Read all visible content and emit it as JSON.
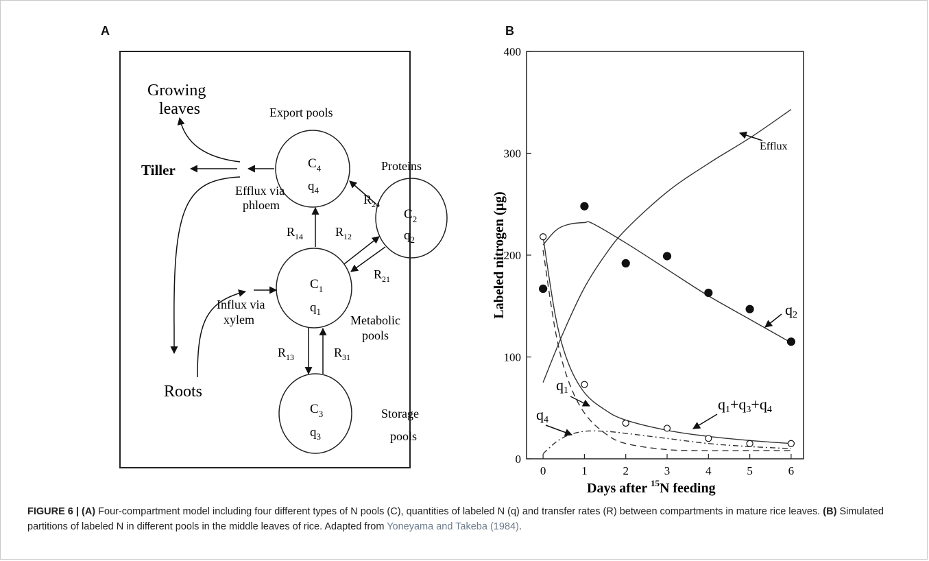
{
  "panel_a": {
    "letter": "A",
    "labels": {
      "growing": "Growing",
      "leaves": "leaves",
      "export_pools": "Export pools",
      "tiller": "Tiller",
      "efflux_via": "Efflux via",
      "phloem": "phloem",
      "proteins": "Proteins",
      "influx_via": "Influx via",
      "xylem": "xylem",
      "roots": "Roots",
      "metabolic": "Metabolic",
      "pools": "pools",
      "storage": "Storage",
      "storage_pools": "pools"
    },
    "compartments": {
      "c4": {
        "c": "C",
        "c_sub": "4",
        "q": "q",
        "q_sub": "4"
      },
      "c2": {
        "c": "C",
        "c_sub": "2",
        "q": "q",
        "q_sub": "2"
      },
      "c1": {
        "c": "C",
        "c_sub": "1",
        "q": "q",
        "q_sub": "1"
      },
      "c3": {
        "c": "C",
        "c_sub": "3",
        "q": "q",
        "q_sub": "3"
      }
    },
    "rates": {
      "r14": {
        "r": "R",
        "sub": "14"
      },
      "r24": {
        "r": "R",
        "sub": "24"
      },
      "r12": {
        "r": "R",
        "sub": "12"
      },
      "r21": {
        "r": "R",
        "sub": "21"
      },
      "r13": {
        "r": "R",
        "sub": "13"
      },
      "r31": {
        "r": "R",
        "sub": "31"
      }
    }
  },
  "panel_b": {
    "letter": "B",
    "annotations": {
      "efflux": "Efflux",
      "q2": "q",
      "q2_sub": "2",
      "q1": "q",
      "q1_sub": "1",
      "q4": "q",
      "q4_sub": "4",
      "sum_q": "q",
      "sum_s1": "1",
      "sum_plus1": "+q",
      "sum_s3": "3",
      "sum_plus2": "+q",
      "sum_s4": "4"
    }
  },
  "chart_data": {
    "type": "line",
    "xlabel_pre": "Days after ",
    "xlabel_sup": "15",
    "xlabel_post": "N feeding",
    "ylabel": "Labeled nitrogen  (μg)",
    "x_ticks": [
      "0",
      "1",
      "2",
      "3",
      "4",
      "5",
      "6"
    ],
    "y_ticks": [
      "0",
      "100",
      "200",
      "300",
      "400"
    ],
    "xlim": [
      -0.4,
      6.3
    ],
    "ylim": [
      0,
      400
    ],
    "grid": false,
    "series": [
      {
        "name": "Efflux",
        "style": "solid",
        "x": [
          0,
          0.5,
          1,
          1.5,
          2,
          3,
          4,
          5,
          6
        ],
        "y": [
          75,
          125,
          168,
          200,
          225,
          262,
          290,
          315,
          343
        ]
      },
      {
        "name": "q2",
        "style": "solid",
        "x": [
          0,
          0.3,
          0.6,
          1,
          1.2,
          2,
          3,
          4,
          5,
          6
        ],
        "y": [
          210,
          224,
          230,
          232,
          231,
          212,
          186,
          160,
          137,
          114
        ]
      },
      {
        "name": "q1+q3+q4",
        "style": "solid",
        "x": [
          0,
          0.3,
          0.6,
          1,
          1.5,
          2,
          3,
          4,
          5,
          6
        ],
        "y": [
          218,
          140,
          95,
          65,
          48,
          38,
          28,
          22,
          18,
          15
        ]
      },
      {
        "name": "q1",
        "style": "dashed",
        "x": [
          0,
          0.3,
          0.6,
          1,
          1.5,
          2,
          3,
          4,
          5,
          6
        ],
        "y": [
          205,
          125,
          78,
          45,
          25,
          15,
          9,
          8,
          8,
          8
        ]
      },
      {
        "name": "q4",
        "style": "dash-dot",
        "x": [
          0,
          0.3,
          0.6,
          1,
          1.5,
          2,
          3,
          4,
          5,
          6
        ],
        "y": [
          5,
          16,
          23,
          27,
          27,
          25,
          20,
          15,
          12,
          10
        ]
      }
    ],
    "points": [
      {
        "name": "q2",
        "marker": "filled",
        "x": [
          0,
          1,
          2,
          3,
          4,
          5,
          6
        ],
        "y": [
          167,
          248,
          192,
          199,
          163,
          147,
          115
        ]
      },
      {
        "name": "q1+q3+q4",
        "marker": "open",
        "x": [
          0,
          1,
          2,
          3,
          4,
          5,
          6
        ],
        "y": [
          218,
          73,
          35,
          30,
          20,
          15,
          15
        ]
      }
    ]
  },
  "caption": {
    "fig": "FIGURE 6 | ",
    "a": "(A)",
    "a_text": " Four-compartment model including four different types of N pools (C), quantities of labeled N (q) and transfer rates (R) between compartments in mature rice leaves. ",
    "b": "(B)",
    "b_text": " Simulated partitions of labeled N in different pools in the middle leaves of rice. Adapted from ",
    "ref": "Yoneyama and Takeba (1984)",
    "end": "."
  }
}
